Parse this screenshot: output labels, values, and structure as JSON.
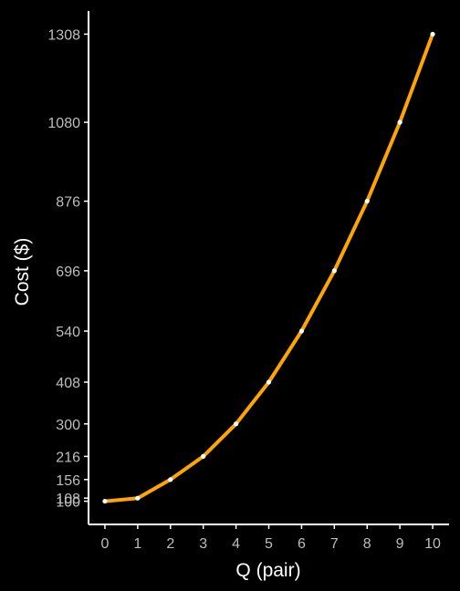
{
  "chart_data": {
    "type": "line",
    "title": "",
    "xlabel": "Q (pair)",
    "ylabel": "Cost ($)",
    "x": [
      0,
      1,
      2,
      3,
      4,
      5,
      6,
      7,
      8,
      9,
      10
    ],
    "y": [
      100,
      108,
      156,
      216,
      300,
      408,
      540,
      696,
      876,
      1080,
      1308
    ],
    "x_ticks": [
      0,
      1,
      2,
      3,
      4,
      5,
      6,
      7,
      8,
      9,
      10
    ],
    "y_ticks": [
      100,
      108,
      156,
      216,
      300,
      408,
      540,
      696,
      876,
      1080,
      1308
    ],
    "xlim": [
      -0.5,
      10.5
    ],
    "ylim": [
      40,
      1368
    ],
    "grid": false,
    "legend": "none",
    "colors": {
      "background": "#000000",
      "line": "#FFA500",
      "points": "#FFFFFF",
      "axis": "#FFFFFF",
      "tick_label": "#BDBDBD",
      "axis_title": "#FFFFFF"
    }
  }
}
